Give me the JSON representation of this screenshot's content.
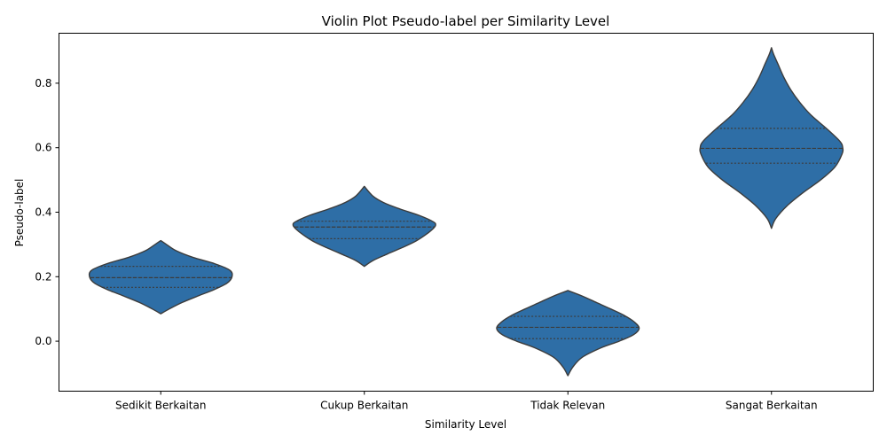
{
  "chart_data": {
    "type": "violin",
    "title": "Violin Plot Pseudo-label per Similarity Level",
    "xlabel": "Similarity Level",
    "ylabel": "Pseudo-label",
    "ylim": [
      -0.155,
      0.955
    ],
    "yticks": [
      "0.0",
      "0.2",
      "0.4",
      "0.6",
      "0.8"
    ],
    "grid": false,
    "legend": "none",
    "categories": [
      "Sedikit Berkaitan",
      "Cukup Berkaitan",
      "Tidak Relevan",
      "Sangat Berkaitan"
    ],
    "violins": [
      {
        "category": "Sedikit Berkaitan",
        "min": 0.085,
        "max": 0.312,
        "q1": 0.167,
        "median": 0.197,
        "q3": 0.232,
        "profile": [
          [
            0.085,
            0.0
          ],
          [
            0.1,
            0.12
          ],
          [
            0.12,
            0.3
          ],
          [
            0.14,
            0.52
          ],
          [
            0.16,
            0.75
          ],
          [
            0.18,
            0.93
          ],
          [
            0.2,
            1.0
          ],
          [
            0.22,
            0.97
          ],
          [
            0.24,
            0.76
          ],
          [
            0.26,
            0.45
          ],
          [
            0.28,
            0.22
          ],
          [
            0.3,
            0.08
          ],
          [
            0.312,
            0.0
          ]
        ]
      },
      {
        "category": "Cukup Berkaitan",
        "min": 0.232,
        "max": 0.48,
        "q1": 0.318,
        "median": 0.354,
        "q3": 0.372,
        "profile": [
          [
            0.232,
            0.0
          ],
          [
            0.25,
            0.12
          ],
          [
            0.27,
            0.32
          ],
          [
            0.29,
            0.53
          ],
          [
            0.31,
            0.72
          ],
          [
            0.33,
            0.86
          ],
          [
            0.35,
            0.97
          ],
          [
            0.36,
            1.0
          ],
          [
            0.37,
            0.97
          ],
          [
            0.39,
            0.77
          ],
          [
            0.41,
            0.5
          ],
          [
            0.43,
            0.27
          ],
          [
            0.45,
            0.12
          ],
          [
            0.48,
            0.0
          ]
        ]
      },
      {
        "category": "Tidak Relevan",
        "min": -0.107,
        "max": 0.157,
        "q1": 0.008,
        "median": 0.043,
        "q3": 0.077,
        "profile": [
          [
            -0.107,
            0.0
          ],
          [
            -0.08,
            0.07
          ],
          [
            -0.05,
            0.2
          ],
          [
            -0.02,
            0.47
          ],
          [
            0.0,
            0.72
          ],
          [
            0.02,
            0.92
          ],
          [
            0.04,
            1.0
          ],
          [
            0.06,
            0.93
          ],
          [
            0.08,
            0.79
          ],
          [
            0.1,
            0.6
          ],
          [
            0.12,
            0.4
          ],
          [
            0.14,
            0.2
          ],
          [
            0.157,
            0.0
          ]
        ]
      },
      {
        "category": "Sangat Berkaitan",
        "min": 0.35,
        "max": 0.91,
        "q1": 0.552,
        "median": 0.598,
        "q3": 0.66,
        "profile": [
          [
            0.35,
            0.0
          ],
          [
            0.38,
            0.06
          ],
          [
            0.42,
            0.22
          ],
          [
            0.46,
            0.44
          ],
          [
            0.5,
            0.69
          ],
          [
            0.54,
            0.89
          ],
          [
            0.58,
            0.99
          ],
          [
            0.6,
            1.0
          ],
          [
            0.62,
            0.96
          ],
          [
            0.66,
            0.77
          ],
          [
            0.7,
            0.56
          ],
          [
            0.74,
            0.4
          ],
          [
            0.78,
            0.27
          ],
          [
            0.82,
            0.17
          ],
          [
            0.86,
            0.09
          ],
          [
            0.89,
            0.03
          ],
          [
            0.91,
            0.0
          ]
        ]
      }
    ],
    "colors": {
      "fill": "#2e6ea6",
      "edge": "#3c3c3c",
      "axis": "#000000"
    }
  }
}
